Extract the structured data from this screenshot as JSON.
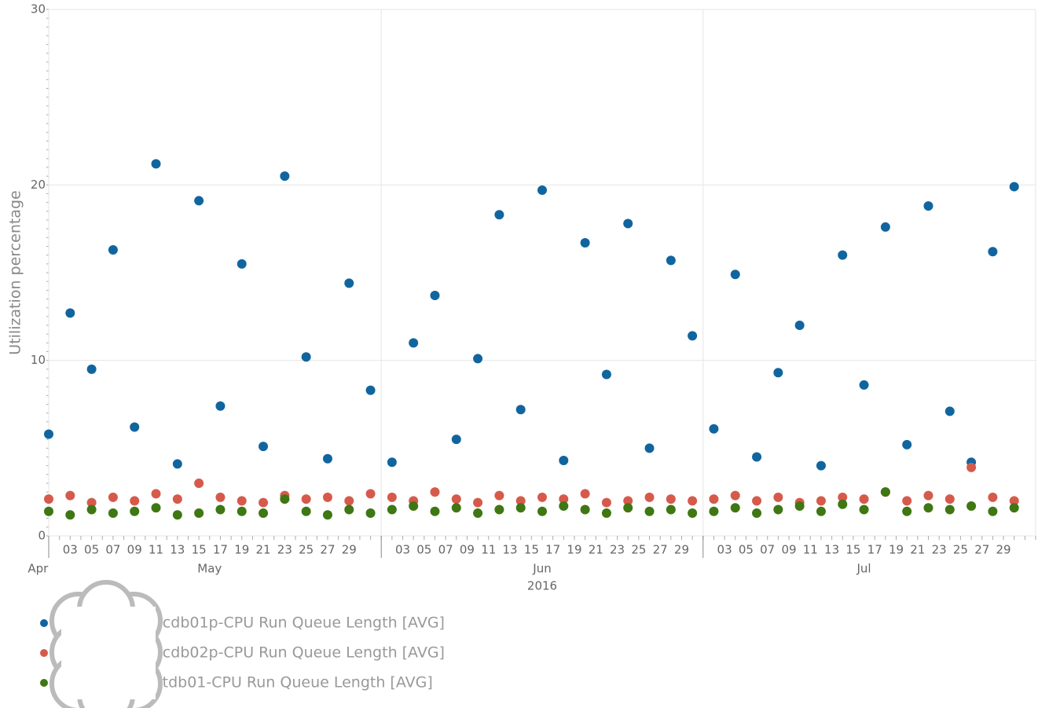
{
  "chart_data": {
    "type": "scatter",
    "ylabel": "Utilization percentage",
    "ylim": [
      0,
      30
    ],
    "yticks": [
      0,
      10,
      20,
      30
    ],
    "xlim": [
      "2016-05-01",
      "2016-08-01"
    ],
    "xgrid": [
      "2016-05-01",
      "2016-06-01",
      "2016-07-01"
    ],
    "xticks": [
      {
        "value": "2016-05-03",
        "label": "03"
      },
      {
        "value": "2016-05-05",
        "label": "05"
      },
      {
        "value": "2016-05-07",
        "label": "07"
      },
      {
        "value": "2016-05-09",
        "label": "09"
      },
      {
        "value": "2016-05-11",
        "label": "11"
      },
      {
        "value": "2016-05-13",
        "label": "13"
      },
      {
        "value": "2016-05-15",
        "label": "15"
      },
      {
        "value": "2016-05-17",
        "label": "17"
      },
      {
        "value": "2016-05-19",
        "label": "19"
      },
      {
        "value": "2016-05-21",
        "label": "21"
      },
      {
        "value": "2016-05-23",
        "label": "23"
      },
      {
        "value": "2016-05-25",
        "label": "25"
      },
      {
        "value": "2016-05-27",
        "label": "27"
      },
      {
        "value": "2016-05-29",
        "label": "29"
      },
      {
        "value": "2016-06-03",
        "label": "03"
      },
      {
        "value": "2016-06-05",
        "label": "05"
      },
      {
        "value": "2016-06-07",
        "label": "07"
      },
      {
        "value": "2016-06-09",
        "label": "09"
      },
      {
        "value": "2016-06-11",
        "label": "11"
      },
      {
        "value": "2016-06-13",
        "label": "13"
      },
      {
        "value": "2016-06-15",
        "label": "15"
      },
      {
        "value": "2016-06-17",
        "label": "17"
      },
      {
        "value": "2016-06-19",
        "label": "19"
      },
      {
        "value": "2016-06-21",
        "label": "21"
      },
      {
        "value": "2016-06-23",
        "label": "23"
      },
      {
        "value": "2016-06-25",
        "label": "25"
      },
      {
        "value": "2016-06-27",
        "label": "27"
      },
      {
        "value": "2016-06-29",
        "label": "29"
      },
      {
        "value": "2016-07-03",
        "label": "03"
      },
      {
        "value": "2016-07-05",
        "label": "05"
      },
      {
        "value": "2016-07-07",
        "label": "07"
      },
      {
        "value": "2016-07-09",
        "label": "09"
      },
      {
        "value": "2016-07-11",
        "label": "11"
      },
      {
        "value": "2016-07-13",
        "label": "13"
      },
      {
        "value": "2016-07-15",
        "label": "15"
      },
      {
        "value": "2016-07-17",
        "label": "17"
      },
      {
        "value": "2016-07-19",
        "label": "19"
      },
      {
        "value": "2016-07-21",
        "label": "21"
      },
      {
        "value": "2016-07-23",
        "label": "23"
      },
      {
        "value": "2016-07-25",
        "label": "25"
      },
      {
        "value": "2016-07-27",
        "label": "27"
      },
      {
        "value": "2016-07-29",
        "label": "29"
      }
    ],
    "month_labels": [
      {
        "value": "2016-04-30",
        "label": "Apr"
      },
      {
        "value": "2016-05-16",
        "label": "May"
      },
      {
        "value": "2016-06-16",
        "label": "Jun"
      },
      {
        "value": "2016-07-16",
        "label": "Jul"
      }
    ],
    "year_label": {
      "value": "2016-06-16",
      "label": "2016"
    },
    "x": [
      "2016-05-01",
      "2016-05-03",
      "2016-05-05",
      "2016-05-07",
      "2016-05-09",
      "2016-05-11",
      "2016-05-13",
      "2016-05-15",
      "2016-05-17",
      "2016-05-19",
      "2016-05-21",
      "2016-05-23",
      "2016-05-25",
      "2016-05-27",
      "2016-05-29",
      "2016-05-31",
      "2016-06-02",
      "2016-06-04",
      "2016-06-06",
      "2016-06-08",
      "2016-06-10",
      "2016-06-12",
      "2016-06-14",
      "2016-06-16",
      "2016-06-18",
      "2016-06-20",
      "2016-06-22",
      "2016-06-24",
      "2016-06-26",
      "2016-06-28",
      "2016-06-30",
      "2016-07-02",
      "2016-07-04",
      "2016-07-06",
      "2016-07-08",
      "2016-07-10",
      "2016-07-12",
      "2016-07-14",
      "2016-07-16",
      "2016-07-18",
      "2016-07-20",
      "2016-07-22",
      "2016-07-24",
      "2016-07-26",
      "2016-07-28",
      "2016-07-30"
    ],
    "series": [
      {
        "name": "pwausxbincdb01p-CPU Run Queue Length [AVG]",
        "color": "#11659f",
        "values": [
          5.8,
          12.7,
          9.5,
          16.3,
          6.2,
          21.2,
          4.1,
          19.1,
          7.4,
          15.5,
          5.1,
          20.5,
          10.2,
          4.4,
          14.4,
          8.3,
          4.2,
          11.0,
          13.7,
          5.5,
          10.1,
          18.3,
          7.2,
          19.7,
          4.3,
          16.7,
          9.2,
          17.8,
          5.0,
          15.7,
          11.4,
          6.1,
          14.9,
          4.5,
          9.3,
          12.0,
          4.0,
          16.0,
          8.6,
          17.6,
          5.2,
          18.8,
          7.1,
          4.2,
          16.2,
          19.9
        ]
      },
      {
        "name": "pwausxbincdb02p-CPU Run Queue Length [AVG]",
        "color": "#d65a4b",
        "values": [
          2.1,
          2.3,
          1.9,
          2.2,
          2.0,
          2.4,
          2.1,
          3.0,
          2.2,
          2.0,
          1.9,
          2.3,
          2.1,
          2.2,
          2.0,
          2.4,
          2.2,
          2.0,
          2.5,
          2.1,
          1.9,
          2.3,
          2.0,
          2.2,
          2.1,
          2.4,
          1.9,
          2.0,
          2.2,
          2.1,
          2.0,
          2.1,
          2.3,
          2.0,
          2.2,
          1.9,
          2.0,
          2.2,
          2.1,
          2.5,
          2.0,
          2.3,
          2.1,
          3.9,
          2.2,
          2.0
        ]
      },
      {
        "name": "pwaussmntdb01-CPU Run Queue Length [AVG]",
        "color": "#3e7713",
        "values": [
          1.4,
          1.2,
          1.5,
          1.3,
          1.4,
          1.6,
          1.2,
          1.3,
          1.5,
          1.4,
          1.3,
          2.1,
          1.4,
          1.2,
          1.5,
          1.3,
          1.5,
          1.7,
          1.4,
          1.6,
          1.3,
          1.5,
          1.6,
          1.4,
          1.7,
          1.5,
          1.3,
          1.6,
          1.4,
          1.5,
          1.3,
          1.4,
          1.6,
          1.3,
          1.5,
          1.7,
          1.4,
          1.8,
          1.5,
          2.5,
          1.4,
          1.6,
          1.5,
          1.7,
          1.4,
          1.6
        ]
      }
    ],
    "grid": true
  }
}
